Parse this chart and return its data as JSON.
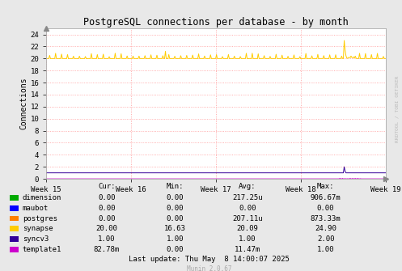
{
  "title": "PostgreSQL connections per database - by month",
  "ylabel": "Connections",
  "background_color": "#e8e8e8",
  "plot_bg_color": "#ffffff",
  "grid_color": "#ff9999",
  "ylim": [
    0,
    25
  ],
  "yticks": [
    0,
    2,
    4,
    6,
    8,
    10,
    12,
    14,
    16,
    18,
    20,
    22,
    24
  ],
  "xtick_labels": [
    "Week 15",
    "Week 16",
    "Week 17",
    "Week 18",
    "Week 19"
  ],
  "watermark": "RRDTOOL / TOBI OETIKER",
  "munin_version": "Munin 2.0.67",
  "last_update": "Last update: Thu May  8 14:00:07 2025",
  "legend_entries": [
    {
      "label": "dimension",
      "color": "#00aa00",
      "cur": "0.00",
      "min": "0.00",
      "avg": "217.25u",
      "max": "906.67m"
    },
    {
      "label": "maubot",
      "color": "#0000ff",
      "cur": "0.00",
      "min": "0.00",
      "avg": "0.00",
      "max": "0.00"
    },
    {
      "label": "postgres",
      "color": "#ff7f00",
      "cur": "0.00",
      "min": "0.00",
      "avg": "207.11u",
      "max": "873.33m"
    },
    {
      "label": "synapse",
      "color": "#ffcc00",
      "cur": "20.00",
      "min": "16.63",
      "avg": "20.09",
      "max": "24.90"
    },
    {
      "label": "syncv3",
      "color": "#330099",
      "cur": "1.00",
      "min": "1.00",
      "avg": "1.00",
      "max": "2.00"
    },
    {
      "label": "template1",
      "color": "#cc00cc",
      "cur": "82.78m",
      "min": "0.00",
      "avg": "11.47m",
      "max": "1.00"
    }
  ]
}
